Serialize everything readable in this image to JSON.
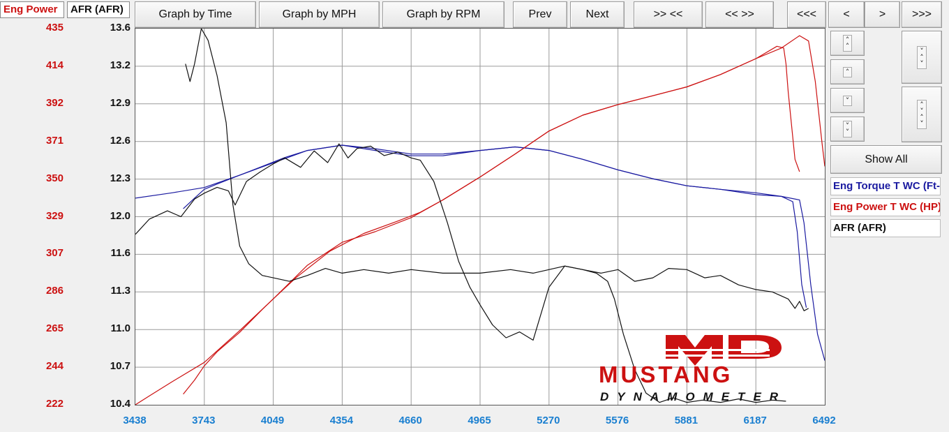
{
  "tabs": [
    {
      "label": "Eng Power"
    },
    {
      "label": "AFR (AFR)"
    }
  ],
  "toolbar": {
    "graph_by_time": "Graph by Time",
    "graph_by_mph": "Graph by MPH",
    "graph_by_rpm": "Graph by RPM",
    "prev": "Prev",
    "next": "Next",
    "zoom_in": ">> <<",
    "zoom_out": "<< >>",
    "first": "<<<",
    "back": "<",
    "forward": ">",
    "last": ">>>"
  },
  "side": {
    "show_all": "Show All",
    "legend": [
      {
        "label": "Eng Torque T WC (Ft-lb)",
        "color": "#1a1aa0"
      },
      {
        "label": "Eng Power T WC (HP)",
        "color": "#cc1111"
      },
      {
        "label": "AFR (AFR)",
        "color": "#111111"
      }
    ]
  },
  "logo": {
    "brand": "MD",
    "line1": "MUSTANG",
    "line2": "DYNAMOMETER"
  },
  "chart_data": {
    "type": "line",
    "xlabel": "",
    "x_ticks": [
      "3438",
      "3743",
      "4049",
      "4354",
      "4660",
      "4965",
      "5270",
      "5576",
      "5881",
      "6187",
      "6492"
    ],
    "xlim": [
      3438,
      6492
    ],
    "y_left_ticks": [
      "435",
      "414",
      "392",
      "371",
      "350",
      "329",
      "307",
      "286",
      "265",
      "244",
      "222"
    ],
    "y_left_range": [
      222,
      435
    ],
    "y_afr_ticks": [
      "13.6",
      "13.2",
      "12.9",
      "12.6",
      "12.3",
      "12.0",
      "11.6",
      "11.3",
      "11.0",
      "10.7",
      "10.4"
    ],
    "y_afr_range": [
      10.4,
      13.6
    ],
    "grid": true,
    "series": [
      {
        "name": "Eng Torque T WC",
        "axis": "power",
        "color": "#1a1aa0",
        "run": 1,
        "x": [
          3438,
          3600,
          3743,
          3900,
          4049,
          4200,
          4354,
          4500,
          4660,
          4800,
          4965,
          5120,
          5270,
          5420,
          5576,
          5730,
          5881,
          6030,
          6187,
          6300,
          6380,
          6400,
          6430,
          6460,
          6492
        ],
        "y": [
          339,
          342,
          345,
          352,
          359,
          366,
          369,
          366,
          363,
          363,
          366,
          368,
          366,
          361,
          355,
          350,
          346,
          344,
          342,
          340,
          338,
          325,
          290,
          262,
          247
        ]
      },
      {
        "name": "Eng Torque T WC",
        "axis": "power",
        "color": "#1a1aa0",
        "run": 2,
        "x": [
          3650,
          3700,
          3743,
          3800,
          3900,
          4000,
          4100,
          4200,
          4354,
          4500,
          4660,
          4800,
          4965,
          5120,
          5270,
          5420,
          5576,
          5730,
          5881,
          6030,
          6187,
          6300,
          6350,
          6370,
          6390,
          6410
        ],
        "y": [
          333,
          339,
          344,
          347,
          352,
          357,
          362,
          366,
          369,
          367,
          364,
          364,
          366,
          368,
          366,
          361,
          355,
          350,
          346,
          344,
          341,
          340,
          337,
          320,
          290,
          277
        ]
      },
      {
        "name": "Eng Power T WC",
        "axis": "power",
        "color": "#cc1111",
        "run": 1,
        "x": [
          3438,
          3500,
          3600,
          3743,
          3900,
          4049,
          4200,
          4354,
          4500,
          4660,
          4800,
          4965,
          5120,
          5270,
          5420,
          5576,
          5730,
          5881,
          6030,
          6187,
          6300,
          6380,
          6420,
          6450,
          6480,
          6492
        ],
        "y": [
          222,
          227,
          235,
          246,
          264,
          282,
          301,
          314,
          320,
          328,
          338,
          351,
          364,
          377,
          386,
          392,
          397,
          402,
          409,
          418,
          424,
          431,
          428,
          405,
          370,
          357
        ]
      },
      {
        "name": "Eng Power T WC",
        "axis": "power",
        "color": "#cc1111",
        "run": 2,
        "x": [
          3650,
          3700,
          3743,
          3800,
          3900,
          4000,
          4049,
          4150,
          4300,
          4450,
          4600,
          4700,
          4800,
          4965,
          5120,
          5270,
          5420,
          5576,
          5730,
          5881,
          6030,
          6187,
          6280,
          6310,
          6320,
          6330,
          6360,
          6380
        ],
        "y": [
          228,
          236,
          244,
          252,
          263,
          276,
          282,
          294,
          309,
          319,
          326,
          331,
          338,
          351,
          364,
          377,
          386,
          392,
          397,
          402,
          409,
          418,
          425,
          424,
          415,
          399,
          361,
          354
        ]
      },
      {
        "name": "AFR",
        "axis": "afr",
        "color": "#111111",
        "run": 1,
        "x": [
          3438,
          3500,
          3580,
          3640,
          3700,
          3743,
          3800,
          3850,
          3880,
          3930,
          3990,
          4049,
          4100,
          4170,
          4230,
          4290,
          4340,
          4380,
          4420,
          4480,
          4540,
          4600,
          4660,
          4700,
          4760,
          4820,
          4870,
          4920,
          4965,
          5020,
          5080,
          5140,
          5200,
          5270,
          5340,
          5420,
          5500,
          5576,
          5650,
          5730,
          5800,
          5881,
          5960,
          6030,
          6110,
          6187,
          6260,
          6330,
          6360,
          6380,
          6400,
          6420
        ],
        "y": [
          11.85,
          11.98,
          12.05,
          12.0,
          12.15,
          12.2,
          12.25,
          12.22,
          12.1,
          12.3,
          12.38,
          12.45,
          12.5,
          12.42,
          12.56,
          12.46,
          12.62,
          12.5,
          12.58,
          12.6,
          12.52,
          12.55,
          12.5,
          12.48,
          12.3,
          11.95,
          11.62,
          11.4,
          11.25,
          11.08,
          10.97,
          11.02,
          10.95,
          11.4,
          11.58,
          11.55,
          11.52,
          11.55,
          11.45,
          11.48,
          11.56,
          11.55,
          11.48,
          11.5,
          11.42,
          11.38,
          11.36,
          11.3,
          11.22,
          11.28,
          11.2,
          11.22
        ]
      },
      {
        "name": "AFR",
        "axis": "afr",
        "color": "#111111",
        "run": 2,
        "x": [
          3660,
          3680,
          3700,
          3730,
          3760,
          3800,
          3840,
          3870,
          3900,
          3940,
          4000,
          4049,
          4120,
          4200,
          4280,
          4354,
          4450,
          4560,
          4660,
          4800,
          4965,
          5100,
          5200,
          5270,
          5340,
          5420,
          5480,
          5530,
          5560,
          5600,
          5650,
          5700,
          5760,
          5820,
          5881,
          5950,
          6030,
          6110,
          6187,
          6260,
          6320
        ],
        "y": [
          13.3,
          13.15,
          13.3,
          13.6,
          13.5,
          13.2,
          12.8,
          12.1,
          11.75,
          11.6,
          11.5,
          11.48,
          11.45,
          11.5,
          11.56,
          11.52,
          11.55,
          11.52,
          11.55,
          11.52,
          11.52,
          11.55,
          11.52,
          11.55,
          11.58,
          11.55,
          11.52,
          11.45,
          11.3,
          11.0,
          10.7,
          10.5,
          10.42,
          10.46,
          10.42,
          10.44,
          10.42,
          10.45,
          10.42,
          10.44,
          10.43
        ]
      }
    ]
  }
}
